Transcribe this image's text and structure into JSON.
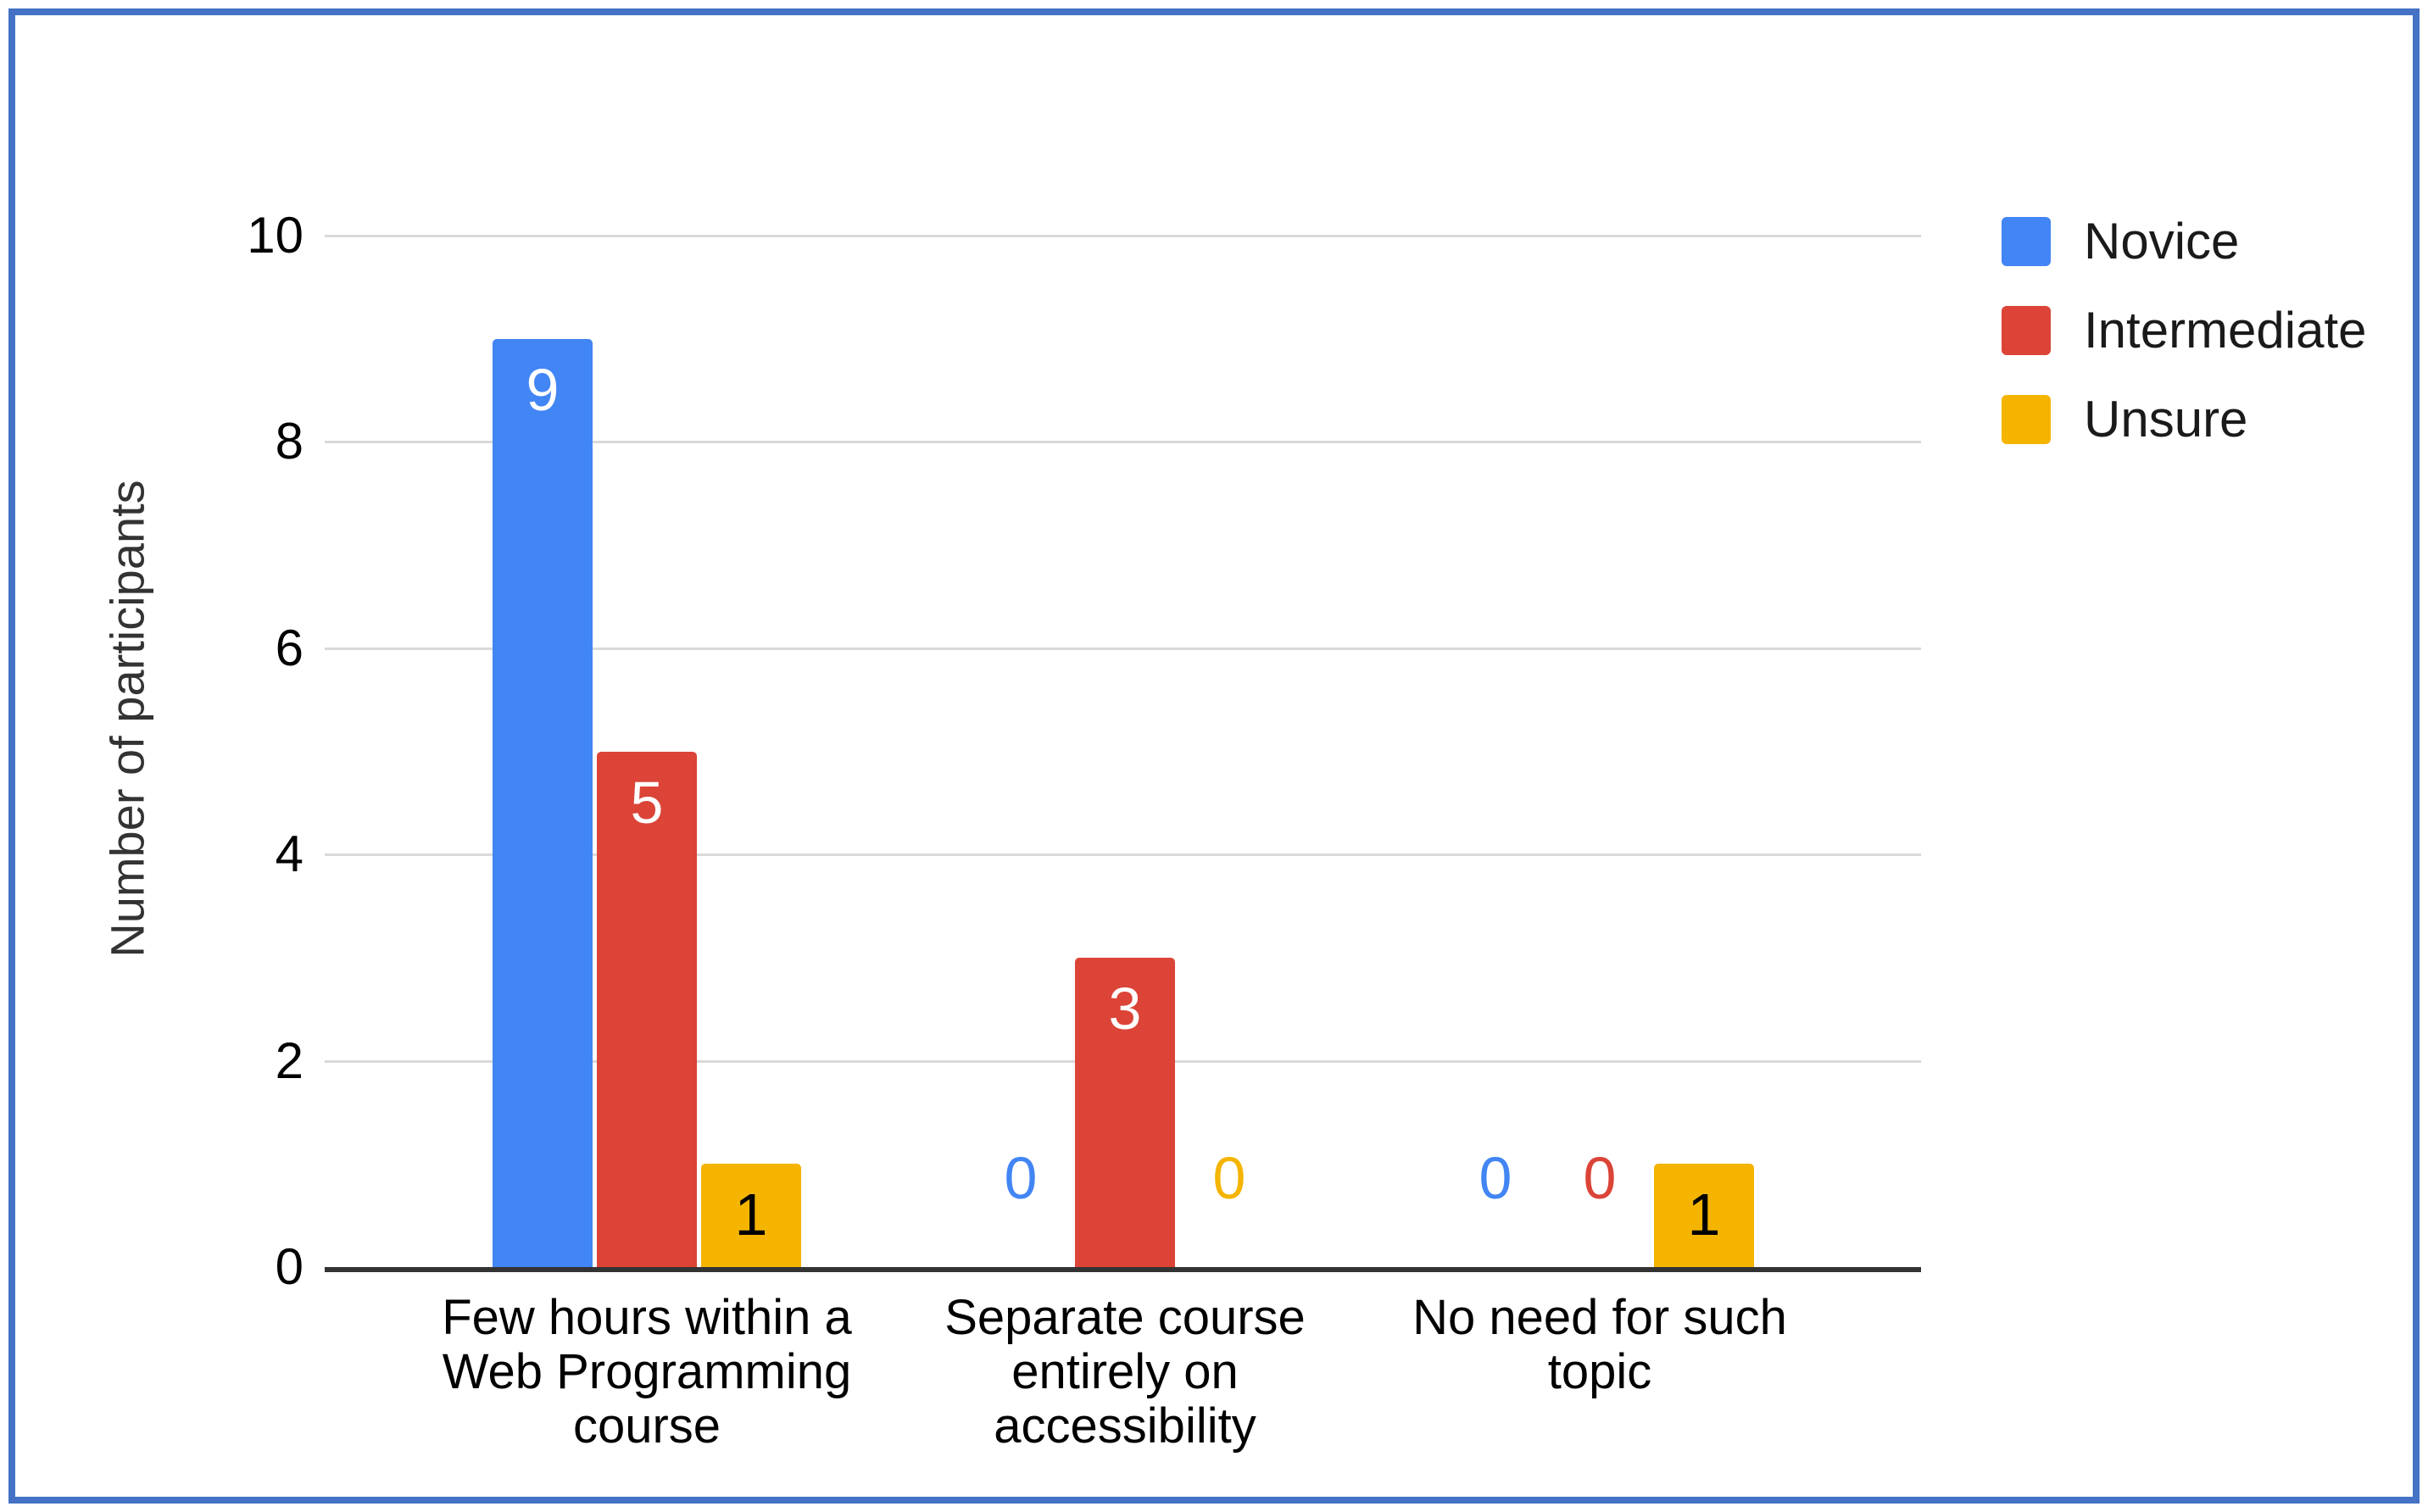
{
  "frame": {
    "border_color": "#4472C4",
    "background": "#ffffff"
  },
  "chart_data": {
    "type": "bar",
    "title": "",
    "xlabel": "",
    "ylabel": "Number of participants",
    "categories": [
      "Few hours within a Web Programming course",
      "Separate course entirely on accessibility",
      "No need for such topic"
    ],
    "category_lines": [
      [
        "Few hours within a",
        "Web Programming",
        "course"
      ],
      [
        "Separate course",
        "entirely on",
        "accessibility"
      ],
      [
        "No need for such",
        "topic"
      ]
    ],
    "series": [
      {
        "name": "Novice",
        "color": "#4285F4",
        "value_label_color": "#ffffff",
        "values": [
          9,
          0,
          0
        ]
      },
      {
        "name": "Intermediate",
        "color": "#DB4437",
        "value_label_color": "#ffffff",
        "values": [
          5,
          3,
          0
        ]
      },
      {
        "name": "Unsure",
        "color": "#F4B400",
        "value_label_color": "#000000",
        "values": [
          1,
          0,
          1
        ]
      }
    ],
    "yaxis": {
      "min": 0,
      "max": 10,
      "tick_step": 2,
      "ticks": [
        0,
        2,
        4,
        6,
        8,
        10
      ]
    },
    "grid": "on",
    "legend_position": "right-top",
    "axis_color": "#333333",
    "gridline_color": "#d9d9d9"
  }
}
